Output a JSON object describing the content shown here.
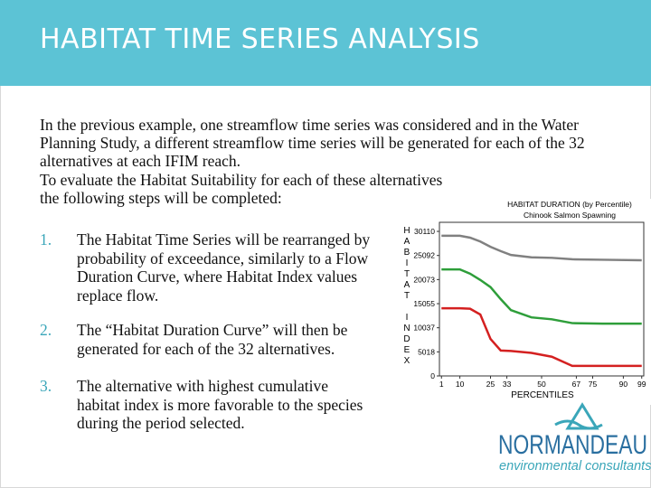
{
  "header": {
    "title": "HABITAT TIME SERIES ANALYSIS"
  },
  "body": {
    "paragraphs": [
      "In the previous example, one streamflow time series was considered and in the Water Planning Study, a different streamflow time series will be generated for each of the 32 alternatives at each IFIM reach.",
      "To evaluate the Habitat Suitability for each of these alternatives the following steps will be completed:"
    ]
  },
  "list": [
    {
      "number": "1.",
      "text": "The Habitat Time Series will be rearranged by probability of exceedance, similarly to a Flow Duration Curve, where Habitat Index values replace flow."
    },
    {
      "number": "2.",
      "text": "The “Habitat Duration Curve” will then be generated for each of the 32 alternatives."
    },
    {
      "number": "3.",
      "text": "The alternative with highest cumulative habitat index is more favorable to the species during the period selected."
    }
  ],
  "chart_data": {
    "type": "line",
    "title": "HABITAT DURATION (by Percentile)",
    "subtitle": "Chinook Salmon Spawning",
    "x_label": "PERCENTILES",
    "y_label": "HABITAT INDEX",
    "x": [
      1,
      10,
      15,
      20,
      25,
      30,
      35,
      45,
      55,
      65,
      80,
      99
    ],
    "series": [
      {
        "color": "#808080",
        "values": [
          29200,
          29200,
          28800,
          28000,
          26900,
          26000,
          25200,
          24700,
          24600,
          24300,
          24200,
          24100
        ]
      },
      {
        "color": "#2e9e3a",
        "values": [
          22200,
          22200,
          21300,
          20000,
          18500,
          16000,
          13700,
          12200,
          11800,
          11000,
          10900,
          10900
        ]
      },
      {
        "color": "#d42020",
        "values": [
          14100,
          14100,
          14000,
          12800,
          7700,
          5300,
          5200,
          4800,
          4000,
          2100,
          2100,
          2100
        ]
      }
    ],
    "xlim": [
      0,
      100
    ],
    "ylim": [
      0,
      32000
    ],
    "xticks": [
      1,
      10,
      25,
      33,
      50,
      67,
      75,
      90,
      99
    ],
    "yticks": [
      0,
      5018,
      10037,
      15055,
      20073,
      25092,
      30110
    ]
  },
  "logo": {
    "name": "NORMANDEAU",
    "tagline": "environmental consultants"
  }
}
